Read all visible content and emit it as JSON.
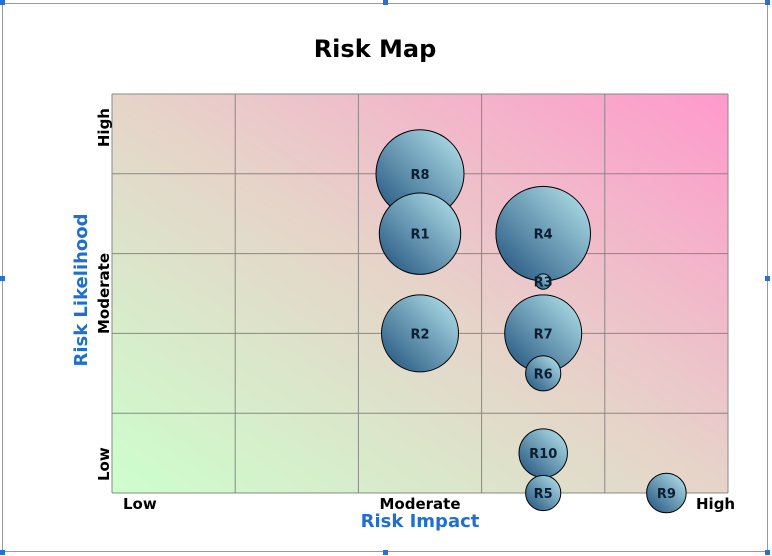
{
  "chart_data": {
    "type": "bubble",
    "title": "Risk Map",
    "xlabel": "Risk Impact",
    "ylabel": "Risk Likelihood",
    "xlim": [
      0,
      5
    ],
    "ylim": [
      0,
      5
    ],
    "grid": true,
    "x_ticks": [
      {
        "label": "Low",
        "value": 0
      },
      {
        "label": "Moderate",
        "value": 2.5
      },
      {
        "label": "High",
        "value": 5
      }
    ],
    "y_ticks": [
      {
        "label": "Low",
        "value": 0
      },
      {
        "label": "Moderate",
        "value": 2.5
      },
      {
        "label": "High",
        "value": 5
      }
    ],
    "colors": {
      "gradient_low": "#ccffcc",
      "gradient_mid": "#e6d4c9",
      "gradient_high": "#ff99cc",
      "grid": "#888888",
      "bubble_dark": "#1e4f7a",
      "bubble_light": "#b8e7ef",
      "axis_title": "#1f6fd1"
    },
    "points": [
      {
        "label": "R8",
        "x": 2.5,
        "y": 4.0,
        "size": 4.0
      },
      {
        "label": "R1",
        "x": 2.5,
        "y": 3.25,
        "size": 3.7
      },
      {
        "label": "R4",
        "x": 3.5,
        "y": 3.25,
        "size": 4.3
      },
      {
        "label": "R3",
        "x": 3.5,
        "y": 2.65,
        "size": 0.7
      },
      {
        "label": "R2",
        "x": 2.5,
        "y": 2.0,
        "size": 3.5
      },
      {
        "label": "R7",
        "x": 3.5,
        "y": 2.0,
        "size": 3.5
      },
      {
        "label": "R6",
        "x": 3.5,
        "y": 1.5,
        "size": 1.6
      },
      {
        "label": "R10",
        "x": 3.5,
        "y": 0.5,
        "size": 2.2
      },
      {
        "label": "R5",
        "x": 3.5,
        "y": 0.0,
        "size": 1.6
      },
      {
        "label": "R9",
        "x": 4.5,
        "y": 0.0,
        "size": 1.8
      }
    ]
  }
}
